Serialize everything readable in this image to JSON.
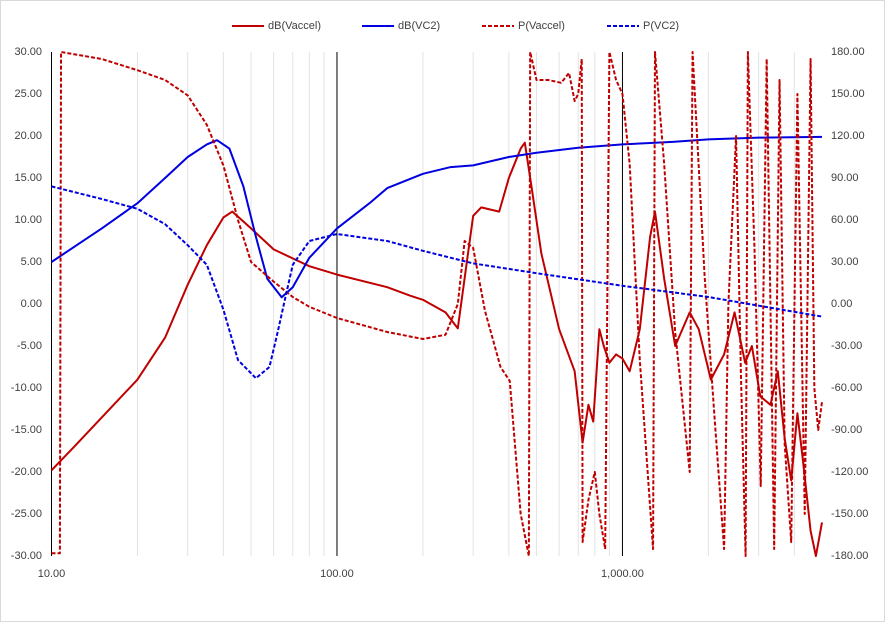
{
  "chart_data": {
    "type": "line",
    "x_scale": "log",
    "minor_grid": true,
    "xlim": [
      10,
      5000
    ],
    "xticks": [
      {
        "value": 10,
        "label": "10.00"
      },
      {
        "value": 100,
        "label": "100.00"
      },
      {
        "value": 1000,
        "label": "1,000.00"
      }
    ],
    "ylim": [
      -30,
      30
    ],
    "yticks": [
      {
        "value": 30,
        "label": "30.00"
      },
      {
        "value": 25,
        "label": "25.00"
      },
      {
        "value": 20,
        "label": "20.00"
      },
      {
        "value": 15,
        "label": "15.00"
      },
      {
        "value": 10,
        "label": "10.00"
      },
      {
        "value": 5,
        "label": "5.00"
      },
      {
        "value": 0,
        "label": "0.00"
      },
      {
        "value": -5,
        "label": "-5.00"
      },
      {
        "value": -10,
        "label": "-10.00"
      },
      {
        "value": -15,
        "label": "-15.00"
      },
      {
        "value": -20,
        "label": "-20.00"
      },
      {
        "value": -25,
        "label": "-25.00"
      },
      {
        "value": -30,
        "label": "-30.00"
      }
    ],
    "y2lim": [
      -180,
      180
    ],
    "y2ticks": [
      {
        "value": 180,
        "label": "180.00"
      },
      {
        "value": 150,
        "label": "150.00"
      },
      {
        "value": 120,
        "label": "120.00"
      },
      {
        "value": 90,
        "label": "90.00"
      },
      {
        "value": 60,
        "label": "60.00"
      },
      {
        "value": 30,
        "label": "30.00"
      },
      {
        "value": 0,
        "label": "0.00"
      },
      {
        "value": -30,
        "label": "-30.00"
      },
      {
        "value": -60,
        "label": "-60.00"
      },
      {
        "value": -90,
        "label": "-90.00"
      },
      {
        "value": -120,
        "label": "-120.00"
      },
      {
        "value": -150,
        "label": "-150.00"
      },
      {
        "value": -180,
        "label": "-180.00"
      }
    ],
    "legend": "top",
    "series": [
      {
        "name": "dB(Vaccel)",
        "color": "#c00000",
        "dashed": false,
        "x": [
          10,
          12,
          15,
          20,
          25,
          30,
          35,
          40,
          43,
          50,
          60,
          80,
          100,
          150,
          180,
          200,
          240,
          265,
          285,
          300,
          320,
          370,
          400,
          440,
          455,
          480,
          520,
          600,
          680,
          725,
          760,
          790,
          830,
          860,
          900,
          950,
          1000,
          1060,
          1150,
          1250,
          1300,
          1400,
          1530,
          1720,
          1850,
          2040,
          2270,
          2470,
          2690,
          2840,
          3040,
          3300,
          3500,
          3700,
          3900,
          4100,
          4300,
          4560,
          4760,
          5000
        ],
        "values": [
          -19.8,
          -17,
          -13.5,
          -9,
          -4,
          2.3,
          7,
          10.3,
          11,
          9,
          6.5,
          4.5,
          3.5,
          2,
          1,
          0.5,
          -1,
          -2.9,
          5,
          10.5,
          11.5,
          11,
          15,
          18.5,
          19.2,
          14,
          6,
          -3,
          -8,
          -16.5,
          -12,
          -14,
          -3,
          -5,
          -7,
          -6,
          -6.5,
          -8,
          -3,
          8,
          11,
          3,
          -5,
          -1,
          -3,
          -9,
          -6,
          -1,
          -7,
          -5,
          -11,
          -12,
          -8,
          -16,
          -21,
          -13,
          -19,
          -27,
          -30,
          -26
        ]
      },
      {
        "name": "dB(VC2)",
        "color": "#0000e0",
        "dashed": false,
        "x": [
          10,
          15,
          20,
          25,
          30,
          35,
          38,
          42,
          47,
          52,
          57,
          64,
          70,
          80,
          100,
          130,
          150,
          200,
          250,
          300,
          400,
          500,
          700,
          1000,
          1500,
          2000,
          3000,
          5000
        ],
        "values": [
          5,
          9,
          12,
          15,
          17.5,
          19,
          19.5,
          18.5,
          14,
          8,
          3,
          0.8,
          2,
          5.5,
          9,
          12,
          13.8,
          15.5,
          16.3,
          16.5,
          17.5,
          18,
          18.6,
          19,
          19.3,
          19.6,
          19.8,
          19.9
        ]
      },
      {
        "name": "P(Vaccel)",
        "color": "#c00000",
        "dashed": true,
        "axis": "y2",
        "x": [
          10,
          10.7,
          10.8,
          15,
          20,
          25,
          30,
          35,
          40,
          45,
          50,
          60,
          70,
          80,
          100,
          150,
          200,
          240,
          265,
          280,
          300,
          330,
          374,
          403,
          420,
          440,
          470,
          475,
          500,
          550,
          610,
          650,
          680,
          700,
          720,
          725,
          760,
          800,
          830,
          870,
          900,
          950,
          1000,
          1060,
          1150,
          1280,
          1300,
          1400,
          1530,
          1720,
          1760,
          1940,
          2100,
          2270,
          2350,
          2500,
          2600,
          2700,
          2750,
          2900,
          3050,
          3200,
          3400,
          3550,
          3700,
          3900,
          4100,
          4350,
          4560,
          4700,
          4850,
          5000
        ],
        "values": [
          -178,
          -178,
          180,
          175,
          167,
          160,
          149,
          128,
          99,
          60,
          30,
          16,
          5,
          -2,
          -10,
          -20,
          -25,
          -22,
          0,
          45,
          40,
          -5,
          -45,
          -55,
          -100,
          -150,
          -180,
          180,
          160,
          160,
          158,
          165,
          145,
          150,
          175,
          -170,
          -140,
          -120,
          -150,
          -175,
          180,
          160,
          150,
          100,
          -40,
          -175,
          180,
          100,
          -20,
          -120,
          180,
          20,
          -80,
          -175,
          0,
          120,
          -50,
          -180,
          180,
          40,
          -130,
          175,
          -175,
          160,
          -100,
          -170,
          150,
          -150,
          175,
          -60,
          -90,
          -70
        ]
      },
      {
        "name": "P(VC2)",
        "color": "#0000e0",
        "dashed": true,
        "axis": "y2",
        "x": [
          10,
          15,
          20,
          25,
          30,
          35,
          40,
          45,
          52,
          58,
          62,
          66,
          70,
          80,
          100,
          150,
          200,
          300,
          500,
          1000,
          2000,
          5000
        ],
        "values": [
          84,
          75,
          68,
          57,
          42,
          28,
          -4,
          -40,
          -53,
          -45,
          -20,
          5,
          28,
          45,
          50,
          45,
          38,
          29,
          22,
          13,
          5,
          -9
        ]
      }
    ]
  }
}
